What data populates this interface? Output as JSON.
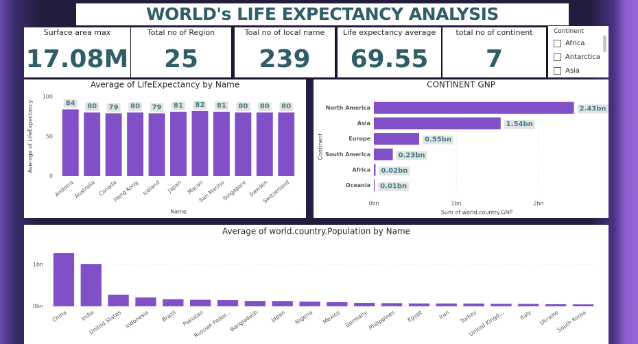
{
  "title": "WORLD's LIFE EXPECTANCY ANALYSIS",
  "cards": [
    {
      "label": "Surface area max",
      "value": "17.08M"
    },
    {
      "label": "Total no of Region",
      "value": "25"
    },
    {
      "label": "Toal no of local name",
      "value": "239"
    },
    {
      "label": "Life expectancy average",
      "value": "69.55"
    },
    {
      "label": "total no of continent",
      "value": "7"
    }
  ],
  "slicer": {
    "title": "Continent",
    "items": [
      "Africa",
      "Antarctica",
      "Asia"
    ]
  },
  "chart_data": [
    {
      "type": "bar",
      "title": "Average of LifeExpectancy by Name",
      "xlabel": "Name",
      "ylabel": "Average of LifeExpectancy",
      "categories": [
        "Andorra",
        "Australia",
        "Canada",
        "Hong Kong",
        "Iceland",
        "Japan",
        "Macao",
        "San Marino",
        "Singapore",
        "Sweden",
        "Switzerland"
      ],
      "values": [
        84,
        80,
        79,
        80,
        79,
        81,
        82,
        81,
        80,
        80,
        80
      ],
      "color": "#8150c8",
      "ylim": [
        0,
        100
      ],
      "yticks": [
        0,
        50,
        100
      ],
      "grid": false,
      "data_labels": true
    },
    {
      "type": "bar",
      "orientation": "horizontal",
      "title": "CONTINENT GNP",
      "xlabel": "Sum of world.country.GNP",
      "ylabel": "Continent",
      "categories": [
        "North America",
        "Asia",
        "Europe",
        "South America",
        "Africa",
        "Oceania"
      ],
      "values": [
        2430000000,
        1540000000,
        550000000,
        230000000,
        20000000,
        10000000
      ],
      "value_labels": [
        "2.43bn",
        "1.54bn",
        "0.55bn",
        "0.23bn",
        "0.02bn",
        "0.01bn"
      ],
      "color": "#8150c8",
      "xlim": [
        0,
        2500000000
      ],
      "xticks": [
        {
          "value": 0,
          "label": "0bn"
        },
        {
          "value": 1000000000,
          "label": "1bn"
        },
        {
          "value": 2000000000,
          "label": "2bn"
        }
      ],
      "grid": true,
      "data_labels": true
    },
    {
      "type": "bar",
      "title": "Average of world.country.Population by Name",
      "categories": [
        "China",
        "India",
        "United States",
        "Indonesia",
        "Brazil",
        "Pakistan",
        "Russian Feder...",
        "Bangladesh",
        "Japan",
        "Nigeria",
        "Mexico",
        "Germany",
        "Philippines",
        "Egypt",
        "Iran",
        "Turkey",
        "United Kingd...",
        "Italy",
        "Ukraine",
        "South Korea"
      ],
      "values": [
        1277558000,
        1013662000,
        278357000,
        212107000,
        170115000,
        156483000,
        146934000,
        129155000,
        126714000,
        111506000,
        98881000,
        82164700,
        75967000,
        68470000,
        67702000,
        66591000,
        59623400,
        57680000,
        50456000,
        46844000
      ],
      "color": "#8150c8",
      "ylim": [
        0,
        1500000000
      ],
      "yticks": [
        {
          "value": 0,
          "label": "0bn"
        },
        {
          "value": 1000000000,
          "label": "1bn"
        }
      ],
      "grid": true,
      "data_labels": false
    }
  ]
}
